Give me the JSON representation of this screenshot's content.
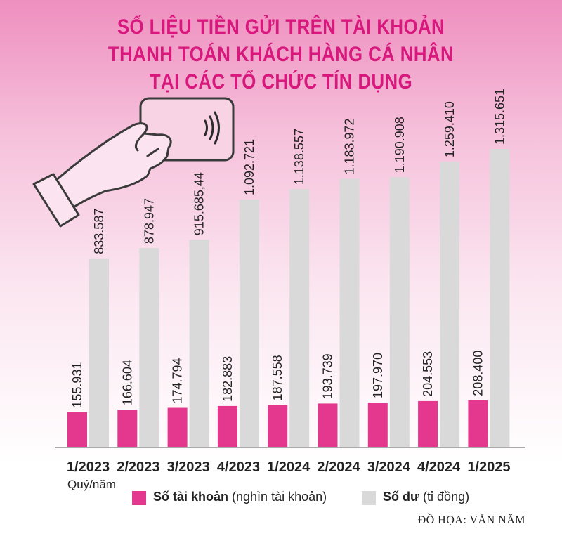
{
  "header": {
    "title_lines": [
      "SỐ LIỆU TIỀN GỬI TRÊN TÀI KHOẢN",
      "THANH TOÁN KHÁCH HÀNG CÁ NHÂN",
      "TẠI CÁC TỔ CHỨC TÍN DỤNG"
    ]
  },
  "chart_data": {
    "type": "bar",
    "xlabel": "Quý/năm",
    "categories": [
      "1/2023",
      "2/2023",
      "3/2023",
      "4/2023",
      "1/2024",
      "2/2024",
      "3/2024",
      "4/2024",
      "1/2025"
    ],
    "series": [
      {
        "name": "Số tài khoản",
        "unit": "(nghìn tài khoản)",
        "color": "#e4388e",
        "values": [
          155931,
          166604,
          174794,
          182883,
          187558,
          193739,
          197970,
          204553,
          208400
        ],
        "labels": [
          "155.931",
          "166.604",
          "174.794",
          "182.883",
          "187.558",
          "193.739",
          "197.970",
          "204.553",
          "208.400"
        ]
      },
      {
        "name": "Số dư",
        "unit": "(tỉ đồng)",
        "color": "#d9d9d9",
        "values": [
          833587,
          878947,
          915685.44,
          1092721,
          1138557,
          1183972,
          1190908,
          1259410,
          1315651
        ],
        "labels": [
          "833.587",
          "878.947",
          "915.685,44",
          "1.092.721",
          "1.138.557",
          "1.183.972",
          "1.190.908",
          "1.259.410",
          "1.315.651"
        ]
      }
    ],
    "legend_position": "bottom",
    "grid": false
  },
  "footer": {
    "credit": "ĐỒ HỌA: VĂN NĂM"
  }
}
